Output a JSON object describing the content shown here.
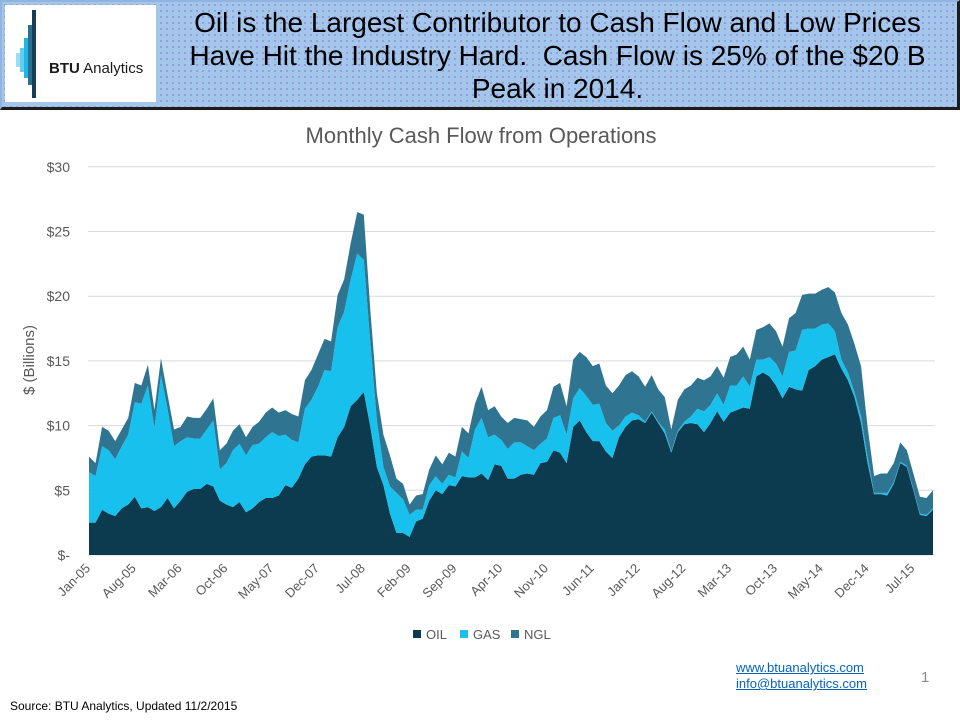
{
  "header": {
    "logo": {
      "brand_bold": "BTU",
      "brand_rest": " Analytics"
    },
    "title_lines": [
      "Oil is the Largest Contributor to Cash Flow and Low Prices",
      "Have Hit the Industry Hard.  Cash Flow is 25% of the $20 B",
      "Peak in 2014."
    ]
  },
  "chart_data": {
    "type": "area",
    "stacked": true,
    "title": "Monthly Cash Flow from Operations",
    "xlabel": "",
    "ylabel": "$ (Billions)",
    "ylim": [
      0,
      30
    ],
    "grid": {
      "horizontal": true,
      "vertical": false
    },
    "y_ticks": [
      {
        "value": 0,
        "label": "$-"
      },
      {
        "value": 5,
        "label": "$5"
      },
      {
        "value": 10,
        "label": "$10"
      },
      {
        "value": 15,
        "label": "$15"
      },
      {
        "value": 20,
        "label": "$20"
      },
      {
        "value": 25,
        "label": "$25"
      },
      {
        "value": 30,
        "label": "$30"
      }
    ],
    "x_tick_interval": 7,
    "x_tick_labels": [
      "Jan-05",
      "Aug-05",
      "Mar-06",
      "Oct-06",
      "May-07",
      "Dec-07",
      "Jul-08",
      "Feb-09",
      "Sep-09",
      "Apr-10",
      "Nov-10",
      "Jun-11",
      "Jan-12",
      "Aug-12",
      "Mar-13",
      "Oct-13",
      "May-14",
      "Dec-14",
      "Jul-15"
    ],
    "categories": [
      "Jan-05",
      "Feb-05",
      "Mar-05",
      "Apr-05",
      "May-05",
      "Jun-05",
      "Jul-05",
      "Aug-05",
      "Sep-05",
      "Oct-05",
      "Nov-05",
      "Dec-05",
      "Jan-06",
      "Feb-06",
      "Mar-06",
      "Apr-06",
      "May-06",
      "Jun-06",
      "Jul-06",
      "Aug-06",
      "Sep-06",
      "Oct-06",
      "Nov-06",
      "Dec-06",
      "Jan-07",
      "Feb-07",
      "Mar-07",
      "Apr-07",
      "May-07",
      "Jun-07",
      "Jul-07",
      "Aug-07",
      "Sep-07",
      "Oct-07",
      "Nov-07",
      "Dec-07",
      "Jan-08",
      "Feb-08",
      "Mar-08",
      "Apr-08",
      "May-08",
      "Jun-08",
      "Jul-08",
      "Aug-08",
      "Sep-08",
      "Oct-08",
      "Nov-08",
      "Dec-08",
      "Jan-09",
      "Feb-09",
      "Mar-09",
      "Apr-09",
      "May-09",
      "Jun-09",
      "Jul-09",
      "Aug-09",
      "Sep-09",
      "Oct-09",
      "Nov-09",
      "Dec-09",
      "Jan-10",
      "Feb-10",
      "Mar-10",
      "Apr-10",
      "May-10",
      "Jun-10",
      "Jul-10",
      "Aug-10",
      "Sep-10",
      "Oct-10",
      "Nov-10",
      "Dec-10",
      "Jan-11",
      "Feb-11",
      "Mar-11",
      "Apr-11",
      "May-11",
      "Jun-11",
      "Jul-11",
      "Aug-11",
      "Sep-11",
      "Oct-11",
      "Nov-11",
      "Dec-11",
      "Jan-12",
      "Feb-12",
      "Mar-12",
      "Apr-12",
      "May-12",
      "Jun-12",
      "Jul-12",
      "Aug-12",
      "Sep-12",
      "Oct-12",
      "Nov-12",
      "Dec-12",
      "Jan-13",
      "Feb-13",
      "Mar-13",
      "Apr-13",
      "May-13",
      "Jun-13",
      "Jul-13",
      "Aug-13",
      "Sep-13",
      "Oct-13",
      "Nov-13",
      "Dec-13",
      "Jan-14",
      "Feb-14",
      "Mar-14",
      "Apr-14",
      "May-14",
      "Jun-14",
      "Jul-14",
      "Aug-14",
      "Sep-14",
      "Oct-14",
      "Nov-14",
      "Dec-14",
      "Jan-15",
      "Feb-15",
      "Mar-15",
      "Apr-15",
      "May-15",
      "Jun-15",
      "Jul-15",
      "Aug-15",
      "Sep-15",
      "Oct-15"
    ],
    "series": [
      {
        "name": "OIL",
        "values": [
          2.5,
          2.5,
          3.5,
          3.2,
          3.0,
          3.6,
          3.9,
          4.5,
          3.6,
          3.7,
          3.4,
          3.7,
          4.4,
          3.6,
          4.2,
          4.9,
          5.1,
          5.1,
          5.5,
          5.3,
          4.2,
          3.9,
          3.7,
          4.1,
          3.3,
          3.6,
          4.1,
          4.4,
          4.4,
          4.6,
          5.4,
          5.2,
          5.9,
          7.0,
          7.6,
          7.7,
          7.7,
          7.6,
          9.1,
          9.9,
          11.5,
          12.0,
          12.6,
          9.9,
          6.8,
          5.4,
          3.2,
          1.7,
          1.7,
          1.4,
          2.6,
          2.8,
          4.2,
          5.0,
          4.7,
          5.4,
          5.3,
          6.1,
          6.0,
          6.0,
          6.3,
          5.8,
          7.0,
          6.9,
          5.9,
          5.9,
          6.2,
          6.3,
          6.2,
          7.1,
          7.2,
          8.1,
          7.9,
          7.1,
          9.9,
          10.4,
          9.5,
          8.8,
          8.8,
          8.0,
          7.5,
          9.1,
          9.9,
          10.4,
          10.5,
          10.2,
          11.0,
          10.2,
          9.4,
          7.9,
          9.5,
          10.1,
          10.2,
          10.1,
          9.5,
          10.2,
          11.1,
          10.3,
          11.0,
          11.2,
          11.4,
          11.3,
          13.8,
          14.1,
          13.8,
          13.1,
          12.1,
          13.0,
          12.8,
          12.7,
          14.3,
          14.6,
          15.1,
          15.3,
          15.5,
          14.4,
          13.5,
          12.2,
          10.2,
          7.1,
          4.7,
          4.7,
          4.6,
          5.5,
          7.1,
          6.8,
          5.0,
          3.1,
          3.0,
          3.5
        ]
      },
      {
        "name": "GAS",
        "values": [
          3.9,
          3.6,
          4.9,
          4.9,
          4.4,
          4.8,
          5.4,
          7.3,
          8.1,
          9.4,
          6.4,
          10.2,
          6.9,
          4.8,
          4.6,
          4.2,
          3.9,
          3.9,
          4.2,
          5.1,
          2.4,
          3.2,
          4.4,
          4.5,
          4.4,
          4.9,
          4.5,
          4.7,
          5.1,
          4.6,
          3.9,
          3.7,
          2.8,
          4.3,
          4.4,
          5.3,
          6.6,
          6.6,
          8.5,
          8.9,
          9.8,
          11.3,
          10.2,
          6.5,
          3.6,
          1.4,
          2.1,
          3.1,
          2.6,
          1.7,
          0.9,
          0.7,
          1.2,
          1.1,
          0.8,
          0.8,
          0.7,
          1.9,
          1.5,
          3.7,
          4.3,
          3.3,
          2.3,
          2.0,
          2.3,
          2.8,
          2.5,
          2.1,
          1.9,
          1.5,
          1.8,
          2.5,
          2.9,
          2.2,
          2.2,
          2.5,
          2.8,
          2.8,
          2.9,
          2.2,
          2.1,
          0.9,
          0.8,
          0.6,
          0.3,
          0.1,
          0.1,
          0.1,
          0.3,
          0.1,
          0.1,
          0.2,
          0.5,
          1.2,
          1.6,
          1.4,
          1.4,
          1.3,
          2.1,
          1.9,
          2.4,
          1.7,
          1.3,
          1.0,
          1.5,
          1.7,
          1.7,
          2.7,
          3.0,
          4.7,
          3.2,
          2.9,
          2.7,
          2.6,
          1.8,
          0.7,
          0.6,
          0.4,
          0.5,
          0.5,
          0.1,
          0.1,
          0.2,
          0.1,
          0.1,
          0.1,
          0.1,
          0.1,
          0.1,
          0.1
        ]
      },
      {
        "name": "NGL",
        "values": [
          1.2,
          1.0,
          1.5,
          1.5,
          1.4,
          1.3,
          1.3,
          1.5,
          1.4,
          1.6,
          1.4,
          1.3,
          1.1,
          1.3,
          1.1,
          1.6,
          1.6,
          1.6,
          1.6,
          1.7,
          1.5,
          1.5,
          1.5,
          1.5,
          1.4,
          1.4,
          1.7,
          1.9,
          1.9,
          1.8,
          1.9,
          2.0,
          2.0,
          2.2,
          2.3,
          2.5,
          2.4,
          2.3,
          2.5,
          2.5,
          2.8,
          3.2,
          3.5,
          2.5,
          2.1,
          2.5,
          2.4,
          1.1,
          1.2,
          0.8,
          1.1,
          1.2,
          1.2,
          1.6,
          1.5,
          1.7,
          1.6,
          1.9,
          1.9,
          2.0,
          2.4,
          2.1,
          2.2,
          1.8,
          2.0,
          1.9,
          1.8,
          2.0,
          1.8,
          2.1,
          2.2,
          2.4,
          2.5,
          2.2,
          3.0,
          2.8,
          3.0,
          3.0,
          3.1,
          2.9,
          2.9,
          3.1,
          3.2,
          3.2,
          3.0,
          2.7,
          2.8,
          2.5,
          2.5,
          1.7,
          2.4,
          2.5,
          2.4,
          2.4,
          2.4,
          2.2,
          2.1,
          2.1,
          2.2,
          2.4,
          2.3,
          2.1,
          2.3,
          2.5,
          2.6,
          2.5,
          2.3,
          2.6,
          2.9,
          2.7,
          2.7,
          2.7,
          2.7,
          2.8,
          3.0,
          3.6,
          3.7,
          3.7,
          3.9,
          2.3,
          1.3,
          1.5,
          1.5,
          1.5,
          1.5,
          1.2,
          1.2,
          1.3,
          1.3,
          1.4
        ]
      }
    ],
    "colors": {
      "OIL": "#0c3a4e",
      "GAS": "#18c0ee",
      "NGL": "#2f7592"
    },
    "legend": {
      "position": "bottom",
      "entries": [
        "OIL",
        "GAS",
        "NGL"
      ]
    }
  },
  "footer": {
    "website": "www.btuanalytics.com",
    "email": "info@btuanalytics.com",
    "page_number": "1",
    "source": "Source: BTU Analytics, Updated 11/2/2015"
  }
}
